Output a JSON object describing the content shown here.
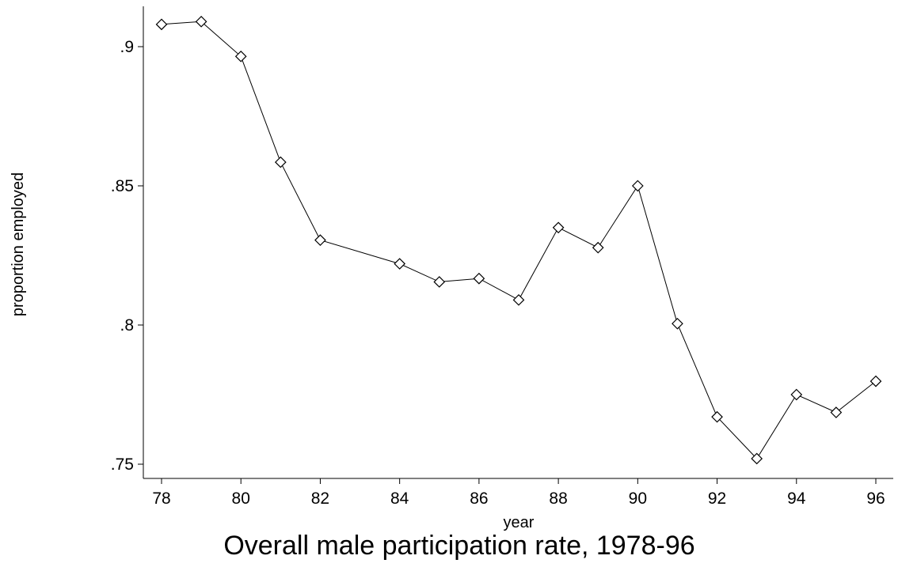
{
  "chart_data": {
    "type": "line",
    "title": "Overall male participation rate, 1978-96",
    "xlabel": "year",
    "ylabel": "proportion employed",
    "xlim": [
      78,
      96
    ],
    "ylim": [
      0.745,
      0.913
    ],
    "x_ticks": [
      {
        "value": 78,
        "label": "78"
      },
      {
        "value": 80,
        "label": "80"
      },
      {
        "value": 82,
        "label": "82"
      },
      {
        "value": 84,
        "label": "84"
      },
      {
        "value": 86,
        "label": "86"
      },
      {
        "value": 88,
        "label": "88"
      },
      {
        "value": 90,
        "label": "90"
      },
      {
        "value": 92,
        "label": "92"
      },
      {
        "value": 94,
        "label": "94"
      },
      {
        "value": 96,
        "label": "96"
      }
    ],
    "y_ticks": [
      {
        "value": 0.75,
        "label": ".75"
      },
      {
        "value": 0.8,
        "label": ".8"
      },
      {
        "value": 0.85,
        "label": ".85"
      },
      {
        "value": 0.9,
        "label": ".9"
      }
    ],
    "grid": false,
    "marker": "diamond",
    "series": [
      {
        "x": [
          78,
          79,
          80,
          81,
          82,
          84,
          85,
          86,
          87,
          88,
          89,
          90,
          91,
          92,
          93,
          94,
          95,
          96
        ],
        "y": [
          0.908,
          0.909,
          0.8965,
          0.8585,
          0.8305,
          0.822,
          0.8155,
          0.8167,
          0.809,
          0.835,
          0.8278,
          0.85,
          0.8005,
          0.767,
          0.752,
          0.775,
          0.7686,
          0.7798
        ]
      }
    ]
  }
}
